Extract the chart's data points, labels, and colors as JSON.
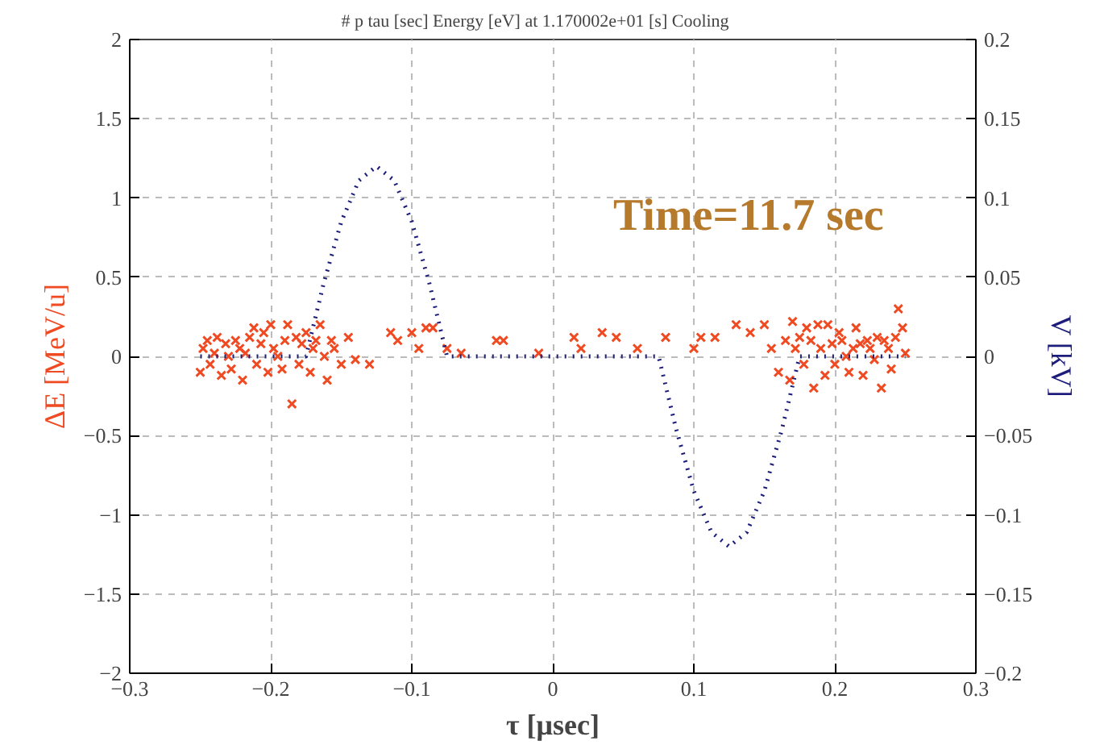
{
  "chart_data": {
    "type": "scatter",
    "title": "# p    tau [sec]   Energy [eV]  at 1.170002e+01 [s]   Cooling",
    "xlabel": "τ [μsec]",
    "ylabel": "ΔE [MeV/u]",
    "y2label": "V [kV]",
    "xlim": [
      -0.3,
      0.3
    ],
    "xticks": [
      -0.3,
      -0.2,
      -0.1,
      0,
      0.1,
      0.2,
      0.3
    ],
    "ylim": [
      -2,
      2
    ],
    "yticks": [
      -2,
      -1.5,
      -1,
      -0.5,
      0,
      0.5,
      1,
      1.5,
      2
    ],
    "y2lim": [
      -0.2,
      0.2
    ],
    "y2ticks": [
      -0.2,
      -0.15,
      -0.1,
      -0.05,
      0,
      0.05,
      0.1,
      0.15,
      0.2
    ],
    "grid": true,
    "annotations": [
      "Time=11.7 sec"
    ],
    "series": [
      {
        "marker": "cross",
        "color": "#f04a22",
        "x": [
          -0.25,
          -0.248,
          -0.245,
          -0.243,
          -0.24,
          -0.238,
          -0.235,
          -0.232,
          -0.23,
          -0.228,
          -0.225,
          -0.222,
          -0.22,
          -0.218,
          -0.215,
          -0.212,
          -0.21,
          -0.207,
          -0.205,
          -0.202,
          -0.2,
          -0.198,
          -0.195,
          -0.192,
          -0.19,
          -0.188,
          -0.185,
          -0.182,
          -0.18,
          -0.178,
          -0.175,
          -0.172,
          -0.17,
          -0.168,
          -0.165,
          -0.162,
          -0.16,
          -0.157,
          -0.155,
          -0.15,
          -0.145,
          -0.14,
          -0.13,
          -0.115,
          -0.11,
          -0.1,
          -0.095,
          -0.09,
          -0.085,
          -0.075,
          -0.065,
          -0.04,
          -0.035,
          -0.01,
          0.015,
          0.02,
          0.035,
          0.045,
          0.06,
          0.08,
          0.1,
          0.105,
          0.115,
          0.13,
          0.14,
          0.15,
          0.155,
          0.16,
          0.165,
          0.168,
          0.17,
          0.172,
          0.175,
          0.178,
          0.18,
          0.183,
          0.185,
          0.188,
          0.19,
          0.193,
          0.195,
          0.198,
          0.2,
          0.203,
          0.205,
          0.208,
          0.21,
          0.213,
          0.215,
          0.218,
          0.22,
          0.223,
          0.225,
          0.228,
          0.23,
          0.233,
          0.235,
          0.238,
          0.24,
          0.243,
          0.245,
          0.248,
          0.25
        ],
        "values": [
          -0.1,
          0.05,
          0.1,
          -0.05,
          0.02,
          0.12,
          -0.12,
          0.08,
          0.0,
          -0.08,
          0.1,
          0.05,
          -0.15,
          0.02,
          0.12,
          0.18,
          -0.05,
          0.08,
          0.15,
          -0.1,
          0.2,
          0.05,
          0.0,
          -0.08,
          0.1,
          0.2,
          -0.3,
          0.12,
          -0.05,
          0.08,
          0.15,
          -0.1,
          0.05,
          0.1,
          0.2,
          0.0,
          -0.15,
          0.1,
          0.05,
          -0.05,
          0.12,
          -0.02,
          -0.05,
          0.15,
          0.1,
          0.15,
          0.05,
          0.18,
          0.18,
          0.05,
          0.02,
          0.1,
          0.1,
          0.02,
          0.12,
          0.05,
          0.15,
          0.12,
          0.05,
          0.12,
          0.05,
          0.12,
          0.12,
          0.2,
          0.15,
          0.2,
          0.05,
          -0.1,
          0.1,
          -0.15,
          0.22,
          0.05,
          0.12,
          -0.05,
          0.18,
          0.1,
          -0.2,
          0.2,
          0.05,
          -0.12,
          0.2,
          0.08,
          -0.05,
          0.15,
          0.1,
          0.0,
          -0.1,
          0.05,
          0.18,
          0.08,
          -0.12,
          0.1,
          0.05,
          -0.02,
          0.12,
          -0.2,
          0.1,
          0.05,
          -0.08,
          0.12,
          0.3,
          0.18,
          0.02
        ]
      },
      {
        "type": "line",
        "axis": "y2",
        "marker": "none",
        "line_style": "dotted",
        "color": "#1c1c7a",
        "x": [
          -0.25,
          -0.175,
          -0.1625,
          -0.15,
          -0.1375,
          -0.125,
          -0.1125,
          -0.1,
          -0.0875,
          -0.075,
          0.075,
          0.0875,
          0.1,
          0.1125,
          0.125,
          0.1375,
          0.15,
          0.1625,
          0.175,
          0.25
        ],
        "values": [
          0,
          0,
          0.046,
          0.085,
          0.111,
          0.12,
          0.111,
          0.085,
          0.046,
          0,
          0,
          -0.046,
          -0.085,
          -0.111,
          -0.12,
          -0.111,
          -0.085,
          -0.046,
          0,
          0
        ]
      }
    ]
  }
}
